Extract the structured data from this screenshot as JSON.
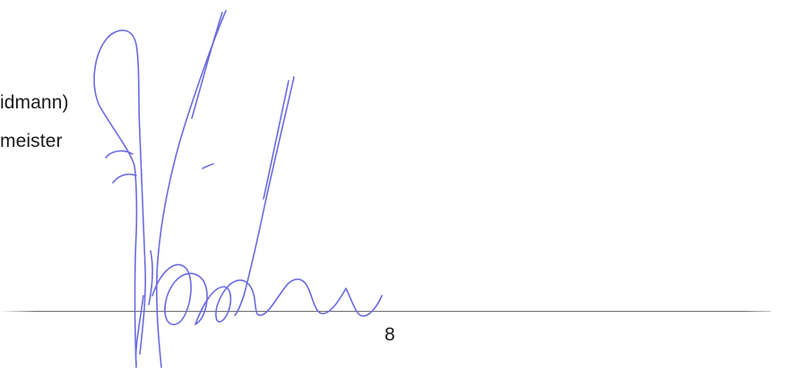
{
  "document": {
    "signatory_name_fragment": "idmann)",
    "signatory_title_fragment": "meister",
    "page_number": "8"
  },
  "signature": {
    "ink_color": "#6a6ae0",
    "icon": "handwritten-signature"
  }
}
